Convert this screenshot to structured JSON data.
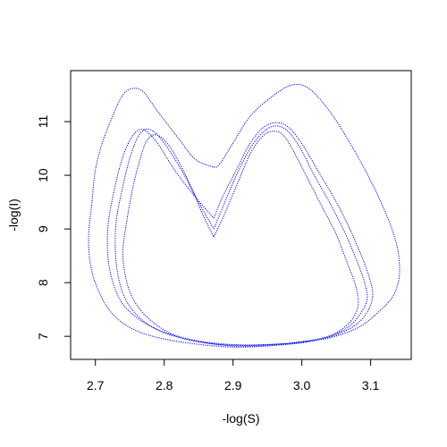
{
  "chart_data": {
    "type": "line",
    "title": "",
    "xlabel": "-log(S)",
    "ylabel": "-log(I)",
    "xlim": [
      2.664,
      3.159
    ],
    "ylim": [
      6.57,
      11.95
    ],
    "xticks": [
      2.7,
      2.8,
      2.9,
      3.0,
      3.1
    ],
    "xtick_labels": [
      "2.7",
      "2.8",
      "2.9",
      "3.0",
      "3.1"
    ],
    "yticks": [
      7,
      8,
      9,
      10,
      11
    ],
    "ytick_labels": [
      "7",
      "8",
      "9",
      "10",
      "11"
    ],
    "grid": false,
    "legend": "none",
    "line_style": "dotted",
    "series_color": "#0000ee",
    "series": [
      {
        "x": [
          2.872,
          2.88,
          2.9,
          2.925,
          2.955,
          2.985,
          3.01,
          3.04,
          3.07,
          3.1,
          3.125,
          3.138,
          3.142,
          3.14,
          3.13,
          3.105,
          3.08,
          3.04,
          3.0,
          2.95,
          2.9,
          2.85,
          2.8,
          2.76,
          2.73,
          2.71,
          2.695,
          2.69,
          2.695,
          2.7,
          2.71,
          2.725,
          2.74,
          2.755,
          2.77,
          2.79,
          2.82,
          2.845,
          2.872
        ],
        "y": [
          10.15,
          10.2,
          10.6,
          11.1,
          11.45,
          11.68,
          11.62,
          11.2,
          10.6,
          9.9,
          9.2,
          8.7,
          8.3,
          8.0,
          7.7,
          7.38,
          7.15,
          6.97,
          6.9,
          6.82,
          6.8,
          6.85,
          6.95,
          7.1,
          7.35,
          7.7,
          8.2,
          8.8,
          9.5,
          10.1,
          10.6,
          11.1,
          11.5,
          11.62,
          11.55,
          11.2,
          10.7,
          10.3,
          10.15
        ]
      },
      {
        "x": [
          2.872,
          2.885,
          2.905,
          2.925,
          2.945,
          2.962,
          2.975,
          2.99,
          3.01,
          3.03,
          3.05,
          3.065,
          3.078,
          3.082,
          3.075,
          3.06,
          3.04,
          3.01,
          2.98,
          2.94,
          2.9,
          2.86,
          2.82,
          2.79,
          2.765,
          2.748,
          2.74,
          2.745,
          2.755,
          2.765,
          2.775,
          2.79,
          2.81,
          2.835,
          2.855,
          2.872
        ],
        "y": [
          8.85,
          9.2,
          9.8,
          10.4,
          10.75,
          10.82,
          10.72,
          10.4,
          9.9,
          9.4,
          8.9,
          8.4,
          7.95,
          7.6,
          7.35,
          7.15,
          7.0,
          6.9,
          6.85,
          6.82,
          6.82,
          6.88,
          7.0,
          7.2,
          7.5,
          7.9,
          8.5,
          9.1,
          9.8,
          10.3,
          10.65,
          10.75,
          10.5,
          9.9,
          9.3,
          8.85
        ]
      },
      {
        "x": [
          2.872,
          2.885,
          2.905,
          2.925,
          2.945,
          2.963,
          2.98,
          2.998,
          3.018,
          3.04,
          3.06,
          3.077,
          3.09,
          3.095,
          3.085,
          3.07,
          3.05,
          3.02,
          2.99,
          2.95,
          2.91,
          2.87,
          2.83,
          2.79,
          2.76,
          2.74,
          2.73,
          2.73,
          2.74,
          2.752,
          2.765,
          2.78,
          2.8,
          2.825,
          2.85,
          2.872
        ],
        "y": [
          9.0,
          9.4,
          10.0,
          10.5,
          10.82,
          10.92,
          10.82,
          10.5,
          10.0,
          9.5,
          9.0,
          8.5,
          8.05,
          7.7,
          7.42,
          7.2,
          7.05,
          6.94,
          6.88,
          6.84,
          6.83,
          6.86,
          6.95,
          7.12,
          7.4,
          7.8,
          8.4,
          9.1,
          9.8,
          10.4,
          10.78,
          10.85,
          10.6,
          10.1,
          9.5,
          9.0
        ]
      },
      {
        "x": [
          2.872,
          2.885,
          2.905,
          2.925,
          2.945,
          2.964,
          2.982,
          3.002,
          3.025,
          3.048,
          3.068,
          3.085,
          3.098,
          3.103,
          3.095,
          3.08,
          3.058,
          3.03,
          2.995,
          2.955,
          2.915,
          2.875,
          2.835,
          2.795,
          2.76,
          2.735,
          2.72,
          2.718,
          2.727,
          2.74,
          2.755,
          2.77,
          2.79,
          2.815,
          2.845,
          2.872
        ],
        "y": [
          9.2,
          9.6,
          10.1,
          10.6,
          10.9,
          10.98,
          10.88,
          10.55,
          10.05,
          9.55,
          9.05,
          8.55,
          8.1,
          7.75,
          7.45,
          7.23,
          7.07,
          6.95,
          6.88,
          6.85,
          6.84,
          6.87,
          6.95,
          7.1,
          7.35,
          7.7,
          8.3,
          9.0,
          9.7,
          10.35,
          10.75,
          10.85,
          10.6,
          10.1,
          9.6,
          9.2
        ]
      }
    ]
  }
}
